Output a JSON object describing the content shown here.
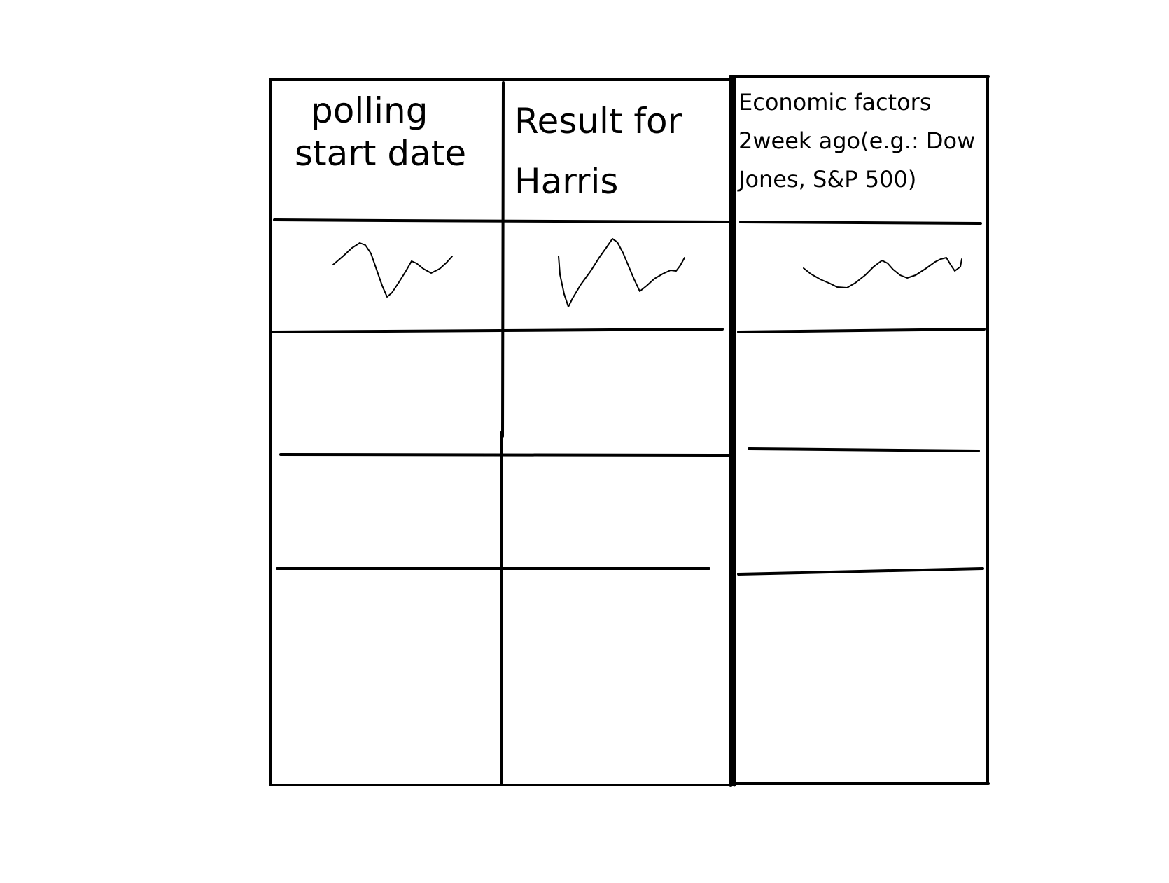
{
  "table": {
    "headers": {
      "col1": {
        "line1": "polling",
        "line2": "start date"
      },
      "col2": {
        "line1": "Result for",
        "line2": "Harris"
      },
      "col3": {
        "line1": "Economic factors",
        "line2": "2week ago(e.g.: Dow",
        "line3": "Jones, S&P 500)"
      }
    },
    "ink_color": "#000000",
    "background_color": "#ffffff"
  }
}
